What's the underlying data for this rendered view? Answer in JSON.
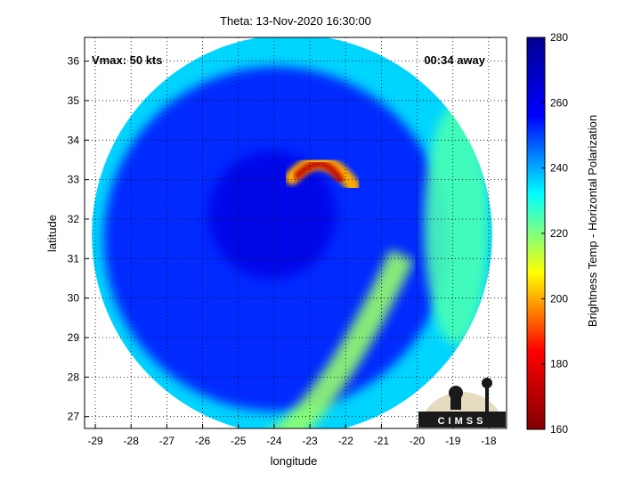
{
  "chart_data": {
    "type": "heatmap",
    "title": "Theta: 13-Nov-2020 16:30:00",
    "xlabel": "longitude",
    "ylabel": "latitude",
    "xlim": [
      -29.3,
      -17.5
    ],
    "ylim": [
      26.7,
      36.6
    ],
    "xticks": [
      -29,
      -28,
      -27,
      -26,
      -25,
      -24,
      -23,
      -22,
      -21,
      -20,
      -19,
      -18
    ],
    "yticks": [
      27,
      28,
      29,
      30,
      31,
      32,
      33,
      34,
      35,
      36
    ],
    "grid": true,
    "annotations": {
      "left": "Vmax: 50 kts",
      "right": "00:34 away"
    },
    "colorbar": {
      "label": "Brightness Temp - Horizontal Polarization",
      "range": [
        160,
        280
      ],
      "ticks": [
        160,
        180,
        200,
        220,
        240,
        260,
        280
      ],
      "colors": [
        "#800000",
        "#ff0000",
        "#ffff00",
        "#00ffff",
        "#0000ff",
        "#00008f"
      ]
    },
    "swath": {
      "center": [
        -23.5,
        31.6
      ],
      "radius_lon": 5.6,
      "radius_lat": 5.0
    },
    "features": [
      {
        "name": "background",
        "value": 252
      },
      {
        "name": "outer-arc",
        "value": 236
      },
      {
        "name": "east-band",
        "value": 225
      },
      {
        "name": "south-band",
        "value": 218
      },
      {
        "name": "rain-band-core",
        "value": 172
      },
      {
        "name": "rain-band-rim",
        "value": 200
      },
      {
        "name": "center",
        "value": 262
      }
    ],
    "logo_text": "CIMSS"
  }
}
